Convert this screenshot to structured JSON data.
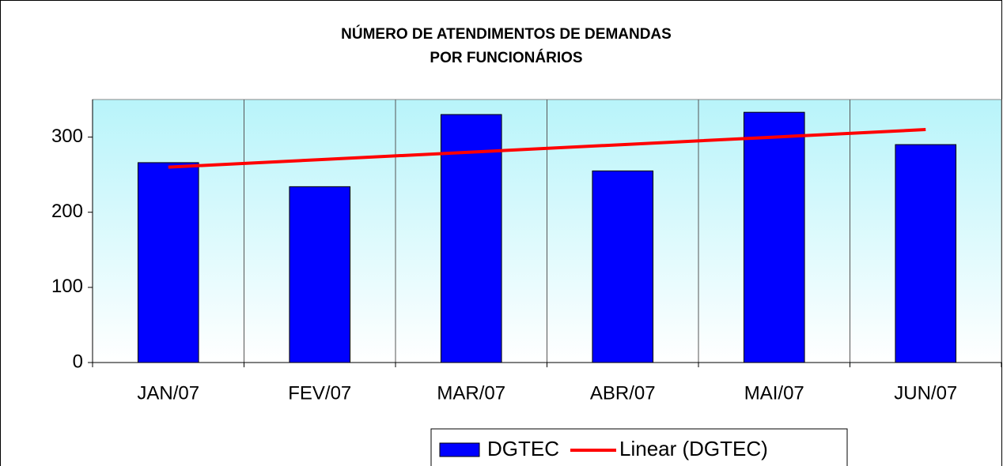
{
  "chart_data": {
    "type": "bar",
    "title": [
      "NÚMERO DE ATENDIMENTOS DE DEMANDAS",
      "POR FUNCIONÁRIOS"
    ],
    "categories": [
      "JAN/07",
      "FEV/07",
      "MAR/07",
      "ABR/07",
      "MAI/07",
      "JUN/07"
    ],
    "series": [
      {
        "name": "DGTEC",
        "type": "bar",
        "color": "#0000ff",
        "values": [
          266,
          234,
          330,
          255,
          333,
          290
        ]
      },
      {
        "name": "Linear (DGTEC)",
        "type": "line",
        "color": "#ff0000",
        "values": [
          260,
          270,
          280,
          290,
          300,
          310
        ]
      }
    ],
    "ylim": [
      0,
      350
    ],
    "yticks": [
      0,
      100,
      200,
      300
    ],
    "grid": true
  }
}
